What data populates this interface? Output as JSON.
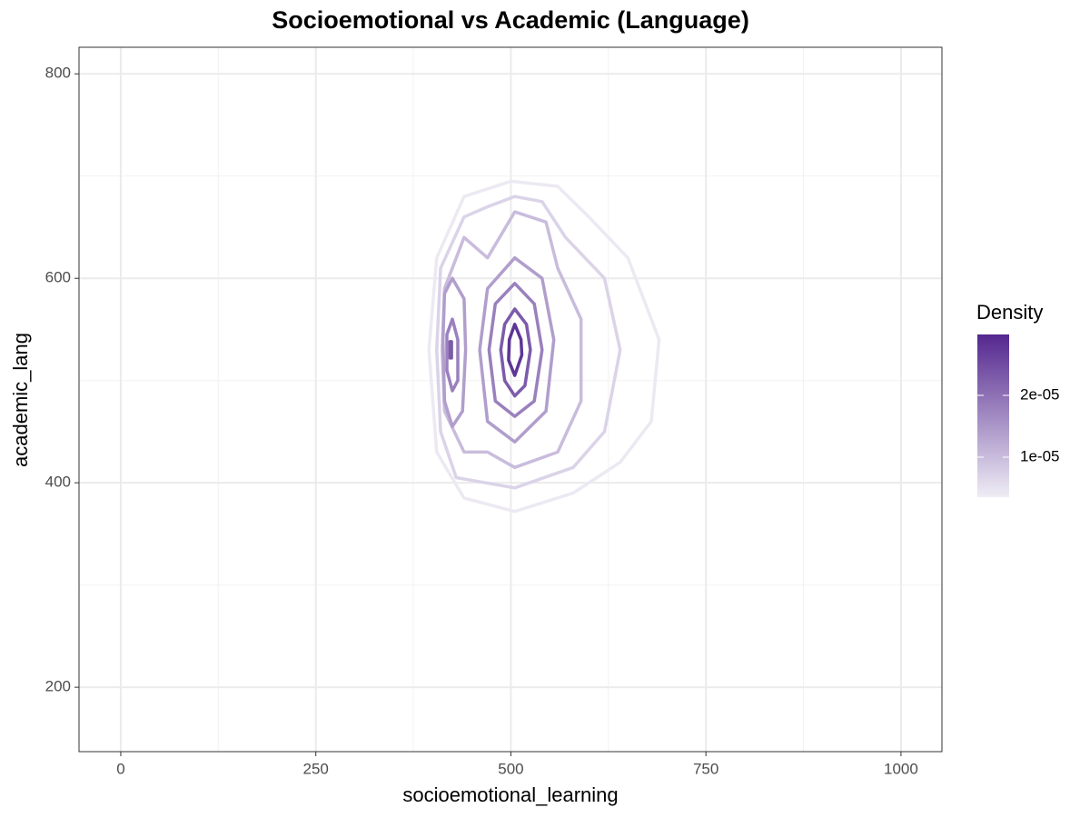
{
  "chart_data": {
    "type": "contour",
    "title": "Socioemotional vs Academic (Language)",
    "x_label": "socioemotional_learning",
    "y_label": "academic_lang",
    "xlim": [
      -53.5,
      1052.5
    ],
    "ylim": [
      137,
      826
    ],
    "xticks": [
      0,
      250,
      500,
      750,
      1000
    ],
    "yticks": [
      200,
      400,
      600,
      800
    ],
    "xminor": [
      125,
      375,
      625,
      875
    ],
    "yminor": [
      300,
      500,
      700
    ],
    "grid": true,
    "legend": {
      "title": "Density",
      "lim": [
        3.53e-06,
        2.985e-05
      ],
      "ticks": [
        {
          "value": 1e-05,
          "label": "1e-05"
        },
        {
          "value": 2e-05,
          "label": "2e-05"
        }
      ],
      "colors": [
        "#efedf5",
        "#54278f"
      ]
    },
    "contours": [
      {
        "level": 4e-06,
        "x": [
          500,
          560,
          600,
          650,
          690,
          680,
          640,
          580,
          505,
          440,
          405,
          395,
          405,
          440
        ],
        "y": [
          695,
          690,
          660,
          620,
          540,
          460,
          420,
          390,
          372,
          385,
          430,
          530,
          620,
          680
        ]
      },
      {
        "level": 7e-06,
        "x": [
          505,
          540,
          570,
          620,
          640,
          620,
          580,
          505,
          430,
          410,
          405,
          410,
          440,
          470
        ],
        "y": [
          680,
          675,
          640,
          600,
          530,
          450,
          415,
          395,
          405,
          450,
          530,
          610,
          660,
          670
        ]
      },
      {
        "level": 1e-05,
        "x": [
          505,
          545,
          560,
          590,
          590,
          560,
          505,
          470,
          440,
          415,
          412,
          415,
          440,
          470
        ],
        "y": [
          665,
          655,
          610,
          560,
          480,
          430,
          415,
          430,
          430,
          470,
          530,
          590,
          640,
          620
        ]
      },
      {
        "level": 1.4e-05,
        "x": [
          505,
          540,
          555,
          545,
          505,
          470,
          460,
          470
        ],
        "y": [
          620,
          600,
          540,
          470,
          440,
          460,
          530,
          590
        ]
      },
      {
        "level": 1.4e-05,
        "x": [
          425,
          440,
          442,
          438,
          425,
          415,
          413,
          415
        ],
        "y": [
          600,
          580,
          530,
          470,
          455,
          480,
          540,
          585
        ]
      },
      {
        "level": 1.8e-05,
        "x": [
          505,
          530,
          540,
          530,
          505,
          480,
          472,
          480
        ],
        "y": [
          595,
          575,
          530,
          480,
          465,
          480,
          530,
          575
        ]
      },
      {
        "level": 1.8e-05,
        "x": [
          425,
          432,
          432,
          425,
          418,
          418
        ],
        "y": [
          560,
          540,
          500,
          490,
          510,
          545
        ]
      },
      {
        "level": 2.3e-05,
        "x": [
          505,
          520,
          525,
          518,
          505,
          492,
          487,
          492
        ],
        "y": [
          570,
          555,
          530,
          495,
          485,
          500,
          530,
          555
        ]
      },
      {
        "level": 2.3e-05,
        "x": [
          422,
          424,
          424,
          422
        ],
        "y": [
          538,
          538,
          522,
          522
        ]
      },
      {
        "level": 2.8e-05,
        "x": [
          505,
          513,
          514,
          505,
          497,
          498
        ],
        "y": [
          555,
          540,
          525,
          505,
          520,
          540
        ]
      }
    ]
  }
}
